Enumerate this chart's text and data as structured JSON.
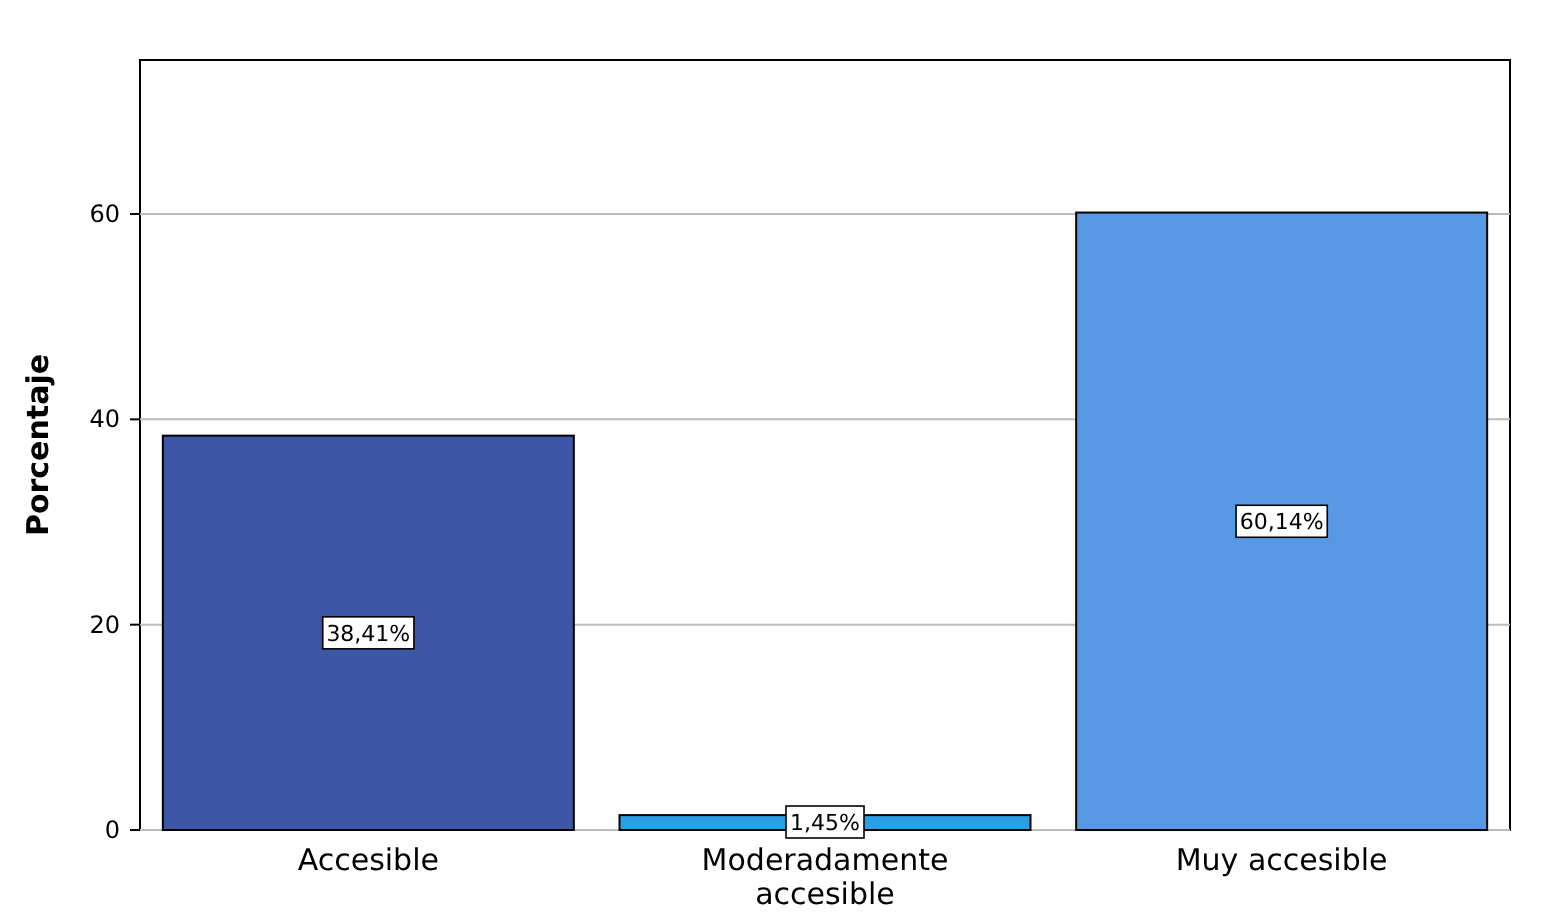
{
  "chart_data": {
    "type": "bar",
    "ylabel": "Porcentaje",
    "categories": [
      "Accesible",
      "Moderadamente accesible",
      "Muy accesible"
    ],
    "values": [
      38.41,
      1.45,
      60.14
    ],
    "colors": [
      "#3d56a6",
      "#2a9fe6",
      "#5899e6"
    ],
    "value_labels": [
      "38,41%",
      "1,45%",
      "60,14%"
    ],
    "ylim": [
      0,
      75
    ],
    "yticks": [
      0,
      20,
      40,
      60
    ],
    "grid": "y"
  }
}
